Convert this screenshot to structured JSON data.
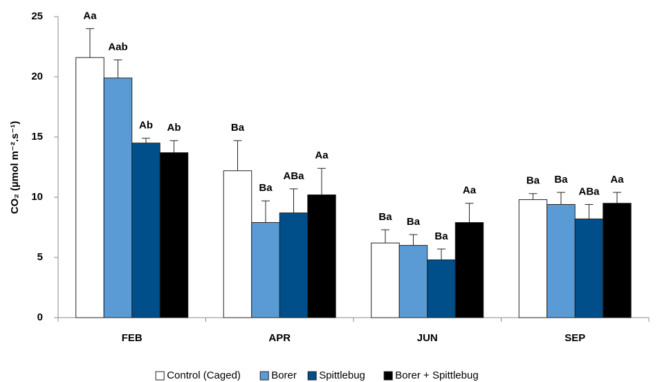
{
  "chart_data": {
    "type": "bar",
    "y_label": "CO₂ (µmol m⁻².s⁻¹)",
    "categories": [
      "FEB",
      "APR",
      "JUN",
      "SEP"
    ],
    "ylim": [
      0,
      25
    ],
    "yticks": [
      0,
      5,
      10,
      15,
      20,
      25
    ],
    "series": [
      {
        "name": "Control (Caged)",
        "color": "#ffffff",
        "values": [
          21.6,
          12.2,
          6.2,
          9.8
        ],
        "errors": [
          2.4,
          2.5,
          1.1,
          0.5
        ],
        "letters": [
          "Aa",
          "Ba",
          "Ba",
          "Ba"
        ]
      },
      {
        "name": "Borer",
        "color": "#5b9bd5",
        "values": [
          19.9,
          7.9,
          6.0,
          9.4
        ],
        "errors": [
          1.5,
          1.8,
          0.9,
          1.0
        ],
        "letters": [
          "Aab",
          "Ba",
          "Ba",
          "Ba"
        ]
      },
      {
        "name": "Spittlebug",
        "color": "#004f8a",
        "values": [
          14.5,
          8.7,
          4.8,
          8.2
        ],
        "errors": [
          0.4,
          2.0,
          0.9,
          1.2
        ],
        "letters": [
          "Ab",
          "ABa",
          "Ba",
          "ABa"
        ]
      },
      {
        "name": "Borer + Spittlebug",
        "color": "#000000",
        "values": [
          13.7,
          10.2,
          7.9,
          9.5
        ],
        "errors": [
          1.0,
          2.2,
          1.6,
          0.9
        ],
        "letters": [
          "Ab",
          "Aa",
          "Aa",
          "Aa"
        ]
      }
    ]
  }
}
